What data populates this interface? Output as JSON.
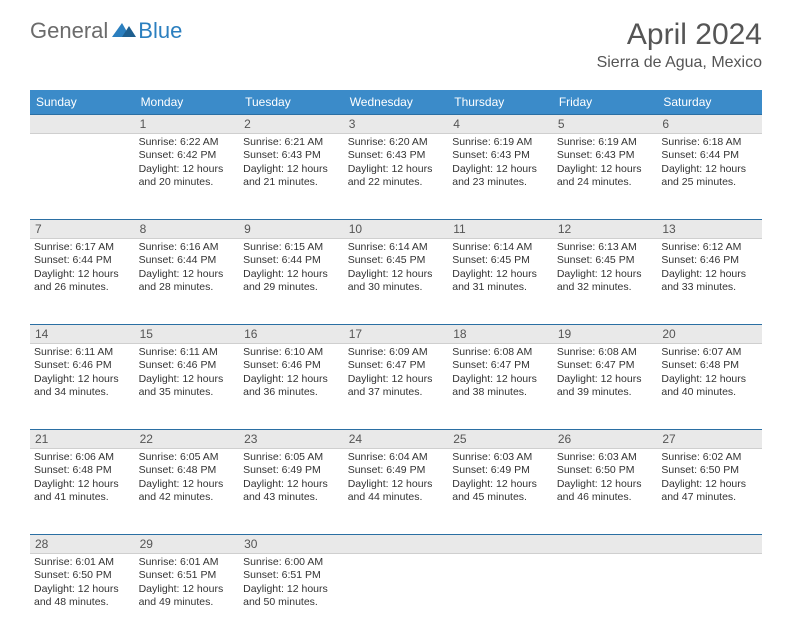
{
  "brand": {
    "part1": "General",
    "part2": "Blue"
  },
  "title": "April 2024",
  "location": "Sierra de Agua, Mexico",
  "colors": {
    "header_bg": "#3b8bc9",
    "header_border": "#2b6fa3",
    "daynum_bg": "#e9e9e9",
    "text": "#333333",
    "title_text": "#555555"
  },
  "weekdays": [
    "Sunday",
    "Monday",
    "Tuesday",
    "Wednesday",
    "Thursday",
    "Friday",
    "Saturday"
  ],
  "weeks": [
    {
      "nums": [
        "",
        "1",
        "2",
        "3",
        "4",
        "5",
        "6"
      ],
      "cells": [
        null,
        {
          "sunrise": "Sunrise: 6:22 AM",
          "sunset": "Sunset: 6:42 PM",
          "d1": "Daylight: 12 hours",
          "d2": "and 20 minutes."
        },
        {
          "sunrise": "Sunrise: 6:21 AM",
          "sunset": "Sunset: 6:43 PM",
          "d1": "Daylight: 12 hours",
          "d2": "and 21 minutes."
        },
        {
          "sunrise": "Sunrise: 6:20 AM",
          "sunset": "Sunset: 6:43 PM",
          "d1": "Daylight: 12 hours",
          "d2": "and 22 minutes."
        },
        {
          "sunrise": "Sunrise: 6:19 AM",
          "sunset": "Sunset: 6:43 PM",
          "d1": "Daylight: 12 hours",
          "d2": "and 23 minutes."
        },
        {
          "sunrise": "Sunrise: 6:19 AM",
          "sunset": "Sunset: 6:43 PM",
          "d1": "Daylight: 12 hours",
          "d2": "and 24 minutes."
        },
        {
          "sunrise": "Sunrise: 6:18 AM",
          "sunset": "Sunset: 6:44 PM",
          "d1": "Daylight: 12 hours",
          "d2": "and 25 minutes."
        }
      ]
    },
    {
      "nums": [
        "7",
        "8",
        "9",
        "10",
        "11",
        "12",
        "13"
      ],
      "cells": [
        {
          "sunrise": "Sunrise: 6:17 AM",
          "sunset": "Sunset: 6:44 PM",
          "d1": "Daylight: 12 hours",
          "d2": "and 26 minutes."
        },
        {
          "sunrise": "Sunrise: 6:16 AM",
          "sunset": "Sunset: 6:44 PM",
          "d1": "Daylight: 12 hours",
          "d2": "and 28 minutes."
        },
        {
          "sunrise": "Sunrise: 6:15 AM",
          "sunset": "Sunset: 6:44 PM",
          "d1": "Daylight: 12 hours",
          "d2": "and 29 minutes."
        },
        {
          "sunrise": "Sunrise: 6:14 AM",
          "sunset": "Sunset: 6:45 PM",
          "d1": "Daylight: 12 hours",
          "d2": "and 30 minutes."
        },
        {
          "sunrise": "Sunrise: 6:14 AM",
          "sunset": "Sunset: 6:45 PM",
          "d1": "Daylight: 12 hours",
          "d2": "and 31 minutes."
        },
        {
          "sunrise": "Sunrise: 6:13 AM",
          "sunset": "Sunset: 6:45 PM",
          "d1": "Daylight: 12 hours",
          "d2": "and 32 minutes."
        },
        {
          "sunrise": "Sunrise: 6:12 AM",
          "sunset": "Sunset: 6:46 PM",
          "d1": "Daylight: 12 hours",
          "d2": "and 33 minutes."
        }
      ]
    },
    {
      "nums": [
        "14",
        "15",
        "16",
        "17",
        "18",
        "19",
        "20"
      ],
      "cells": [
        {
          "sunrise": "Sunrise: 6:11 AM",
          "sunset": "Sunset: 6:46 PM",
          "d1": "Daylight: 12 hours",
          "d2": "and 34 minutes."
        },
        {
          "sunrise": "Sunrise: 6:11 AM",
          "sunset": "Sunset: 6:46 PM",
          "d1": "Daylight: 12 hours",
          "d2": "and 35 minutes."
        },
        {
          "sunrise": "Sunrise: 6:10 AM",
          "sunset": "Sunset: 6:46 PM",
          "d1": "Daylight: 12 hours",
          "d2": "and 36 minutes."
        },
        {
          "sunrise": "Sunrise: 6:09 AM",
          "sunset": "Sunset: 6:47 PM",
          "d1": "Daylight: 12 hours",
          "d2": "and 37 minutes."
        },
        {
          "sunrise": "Sunrise: 6:08 AM",
          "sunset": "Sunset: 6:47 PM",
          "d1": "Daylight: 12 hours",
          "d2": "and 38 minutes."
        },
        {
          "sunrise": "Sunrise: 6:08 AM",
          "sunset": "Sunset: 6:47 PM",
          "d1": "Daylight: 12 hours",
          "d2": "and 39 minutes."
        },
        {
          "sunrise": "Sunrise: 6:07 AM",
          "sunset": "Sunset: 6:48 PM",
          "d1": "Daylight: 12 hours",
          "d2": "and 40 minutes."
        }
      ]
    },
    {
      "nums": [
        "21",
        "22",
        "23",
        "24",
        "25",
        "26",
        "27"
      ],
      "cells": [
        {
          "sunrise": "Sunrise: 6:06 AM",
          "sunset": "Sunset: 6:48 PM",
          "d1": "Daylight: 12 hours",
          "d2": "and 41 minutes."
        },
        {
          "sunrise": "Sunrise: 6:05 AM",
          "sunset": "Sunset: 6:48 PM",
          "d1": "Daylight: 12 hours",
          "d2": "and 42 minutes."
        },
        {
          "sunrise": "Sunrise: 6:05 AM",
          "sunset": "Sunset: 6:49 PM",
          "d1": "Daylight: 12 hours",
          "d2": "and 43 minutes."
        },
        {
          "sunrise": "Sunrise: 6:04 AM",
          "sunset": "Sunset: 6:49 PM",
          "d1": "Daylight: 12 hours",
          "d2": "and 44 minutes."
        },
        {
          "sunrise": "Sunrise: 6:03 AM",
          "sunset": "Sunset: 6:49 PM",
          "d1": "Daylight: 12 hours",
          "d2": "and 45 minutes."
        },
        {
          "sunrise": "Sunrise: 6:03 AM",
          "sunset": "Sunset: 6:50 PM",
          "d1": "Daylight: 12 hours",
          "d2": "and 46 minutes."
        },
        {
          "sunrise": "Sunrise: 6:02 AM",
          "sunset": "Sunset: 6:50 PM",
          "d1": "Daylight: 12 hours",
          "d2": "and 47 minutes."
        }
      ]
    },
    {
      "nums": [
        "28",
        "29",
        "30",
        "",
        "",
        "",
        ""
      ],
      "cells": [
        {
          "sunrise": "Sunrise: 6:01 AM",
          "sunset": "Sunset: 6:50 PM",
          "d1": "Daylight: 12 hours",
          "d2": "and 48 minutes."
        },
        {
          "sunrise": "Sunrise: 6:01 AM",
          "sunset": "Sunset: 6:51 PM",
          "d1": "Daylight: 12 hours",
          "d2": "and 49 minutes."
        },
        {
          "sunrise": "Sunrise: 6:00 AM",
          "sunset": "Sunset: 6:51 PM",
          "d1": "Daylight: 12 hours",
          "d2": "and 50 minutes."
        },
        null,
        null,
        null,
        null
      ]
    }
  ]
}
